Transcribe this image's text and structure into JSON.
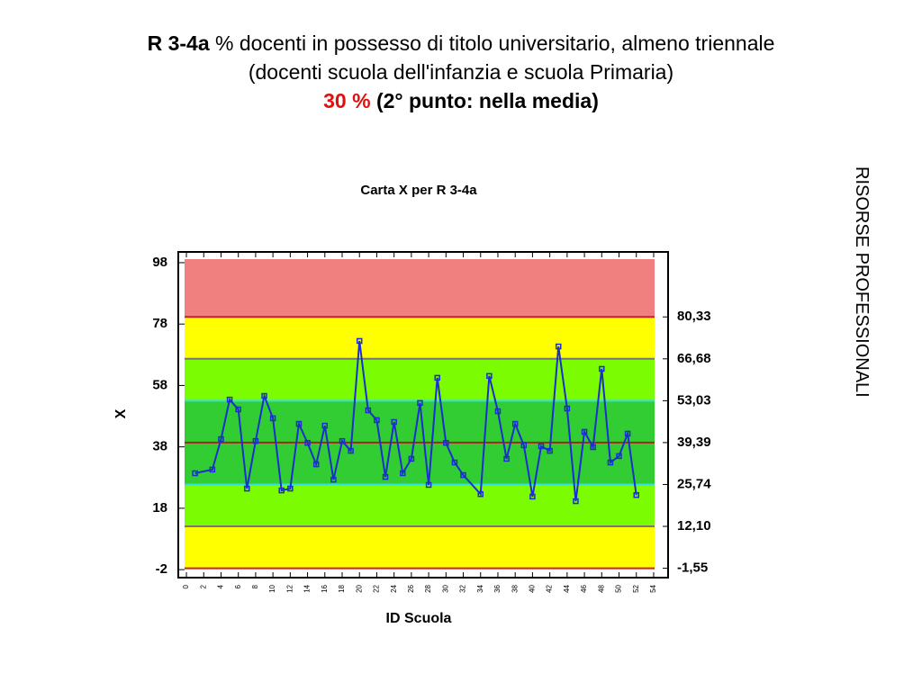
{
  "header": {
    "code": "R 3-4a",
    "title": "% docenti in possesso di titolo universitario, almeno triennale",
    "subtitle": "(docenti scuola dell'infanzia e scuola Primaria)",
    "score": "30 %",
    "note": "(2° punto: nella media)"
  },
  "side_label": "RISORSE PROFESSIONALI",
  "chart_data": {
    "type": "line",
    "title": "Carta X per R 3-4a",
    "x_label": "ID Scuola",
    "y_label": "X",
    "x": [
      1,
      3,
      4,
      5,
      6,
      7,
      8,
      9,
      10,
      11,
      12,
      13,
      14,
      15,
      16,
      17,
      18,
      19,
      20,
      21,
      22,
      23,
      24,
      25,
      26,
      27,
      28,
      29,
      30,
      31,
      32,
      34,
      35,
      36,
      37,
      38,
      39,
      40,
      41,
      42,
      43,
      44,
      45,
      46,
      47,
      48,
      49,
      50,
      51,
      52
    ],
    "series": [
      {
        "name": "X",
        "color": "#1a2fd0",
        "values": [
          29.4,
          30.6,
          40.5,
          53.4,
          50.2,
          24.4,
          39.9,
          54.6,
          47.3,
          23.8,
          24.4,
          45.5,
          39.3,
          32.3,
          44.9,
          27.3,
          39.9,
          36.7,
          72.5,
          49.9,
          46.7,
          28.2,
          46.1,
          29.4,
          34.1,
          52.3,
          25.6,
          60.5,
          39.3,
          32.9,
          28.8,
          22.6,
          61.1,
          49.6,
          34.1,
          45.5,
          38.5,
          21.8,
          38.2,
          36.7,
          70.7,
          50.5,
          20.3,
          42.9,
          37.9,
          63.4,
          32.9,
          35.0,
          42.3,
          22.3
        ]
      }
    ],
    "xlim": [
      -0.94,
      55.67
    ],
    "xticks": [
      0,
      2,
      4,
      6,
      8,
      10,
      12,
      14,
      16,
      18,
      20,
      22,
      24,
      26,
      28,
      30,
      32,
      34,
      36,
      38,
      40,
      42,
      44,
      46,
      48,
      50,
      52,
      54
    ],
    "ylim": [
      -4.6,
      101.5
    ],
    "yticks": [
      98,
      78,
      58,
      38,
      18,
      -2
    ],
    "y2lim": [
      -4.6,
      101.5
    ],
    "y2ticks": [
      {
        "value": 80.33,
        "label": "80,33"
      },
      {
        "value": 66.68,
        "label": "66,68"
      },
      {
        "value": 53.03,
        "label": "53,03"
      },
      {
        "value": 39.39,
        "label": "39,39"
      },
      {
        "value": 25.74,
        "label": "25,74"
      },
      {
        "value": 12.1,
        "label": "12,10"
      },
      {
        "value": -1.55,
        "label": "-1,55"
      }
    ],
    "limit_colors": [
      "#cc2020",
      "#777777",
      "#33e0e0",
      "#b02020",
      "#33e0e0",
      "#777777",
      "#cc2020"
    ],
    "band_colors": [
      "#f08080",
      "#ffff00",
      "#7cfc00",
      "#32cd32",
      "#32cd32",
      "#7cfc00",
      "#ffff00"
    ]
  }
}
